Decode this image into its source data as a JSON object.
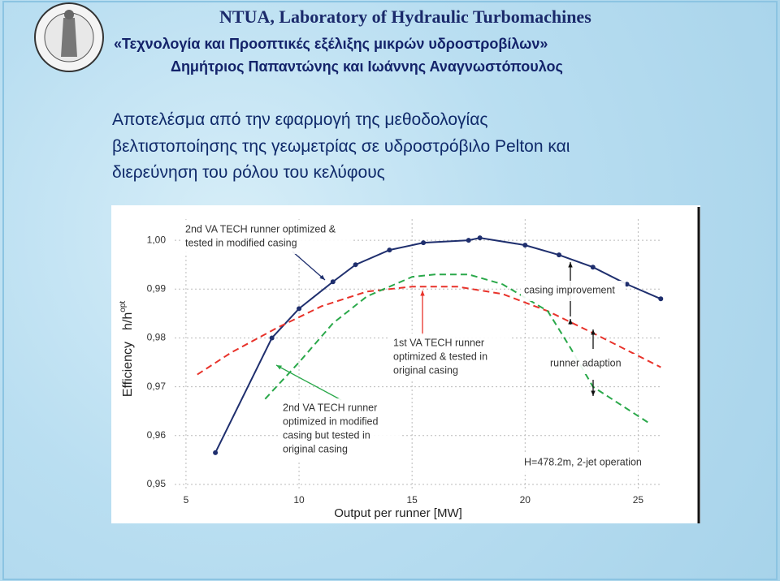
{
  "header": {
    "lab": "NTUA, Laboratory of Hydraulic Turbomachines",
    "title": "«Τεχνολογία και Προοπτικές εξέλιξης μικρών υδροστροβίλων»",
    "authors": "Δημήτριος Παπαντώνης και Ιωάννης Αναγνωστόπουλος"
  },
  "slide": {
    "lines": [
      "Αποτελέσμα από την εφαρμογή της μεθοδολογίας",
      "βελτιστοποίησης της γεωμετρίας σε υδροστρόβιλο Pelton και",
      "διερεύνηση του ρόλου του κελύφους"
    ]
  },
  "chart_data": {
    "type": "line",
    "xlabel": "Output per runner  [MW]",
    "ylabel": "Efficiency",
    "ylabel_symbol": "h/h",
    "ylabel_sup": "opt",
    "xlim": [
      4.5,
      27.5
    ],
    "xticks": [
      5,
      10,
      15,
      20,
      25
    ],
    "ylim": [
      0.9475,
      1.006
    ],
    "yticks": [
      {
        "value": 0.95,
        "label": "0,95"
      },
      {
        "value": 0.96,
        "label": "0,96"
      },
      {
        "value": 0.97,
        "label": "0,97"
      },
      {
        "value": 0.98,
        "label": "0,98"
      },
      {
        "value": 0.99,
        "label": "0,99"
      },
      {
        "value": 1.0,
        "label": "1,00"
      }
    ],
    "series": [
      {
        "color": "#1f2f6e",
        "dash": false,
        "markers": true,
        "x": [
          6.3,
          8.8,
          10,
          11.5,
          12.5,
          14,
          15.5,
          17.5,
          18,
          20,
          21.5,
          23,
          24.5,
          26
        ],
        "values": [
          0.9565,
          0.98,
          0.986,
          0.9915,
          0.995,
          0.998,
          0.9995,
          1.0,
          1.0005,
          0.999,
          0.997,
          0.9945,
          0.991,
          0.988
        ]
      },
      {
        "color": "#e8322a",
        "dash": true,
        "markers": false,
        "x": [
          5.5,
          7,
          9,
          11,
          13,
          15,
          17,
          19,
          21,
          23,
          24.5,
          26
        ],
        "values": [
          0.9725,
          0.977,
          0.982,
          0.9865,
          0.9895,
          0.9905,
          0.9905,
          0.989,
          0.9855,
          0.981,
          0.9775,
          0.974
        ]
      },
      {
        "color": "#2aa84a",
        "dash": true,
        "markers": false,
        "x": [
          8.5,
          10,
          11.5,
          13,
          15,
          16,
          17.5,
          19,
          21,
          22,
          23,
          25.5
        ],
        "values": [
          0.9675,
          0.975,
          0.983,
          0.9885,
          0.9925,
          0.993,
          0.993,
          0.991,
          0.9855,
          0.978,
          0.97,
          0.9625
        ]
      }
    ],
    "annotations": [
      [
        "2nd VA TECH runner optimized &",
        "tested in modified casing"
      ],
      [
        "1st VA TECH runner",
        "optimized & tested in",
        "original casing"
      ],
      [
        "2nd VA TECH runner",
        "optimized in modified",
        "casing but tested in",
        "original casing"
      ],
      [
        "casing improvement"
      ],
      [
        "runner adaption"
      ],
      [
        "H=478.2m,  2-jet operation"
      ]
    ]
  }
}
